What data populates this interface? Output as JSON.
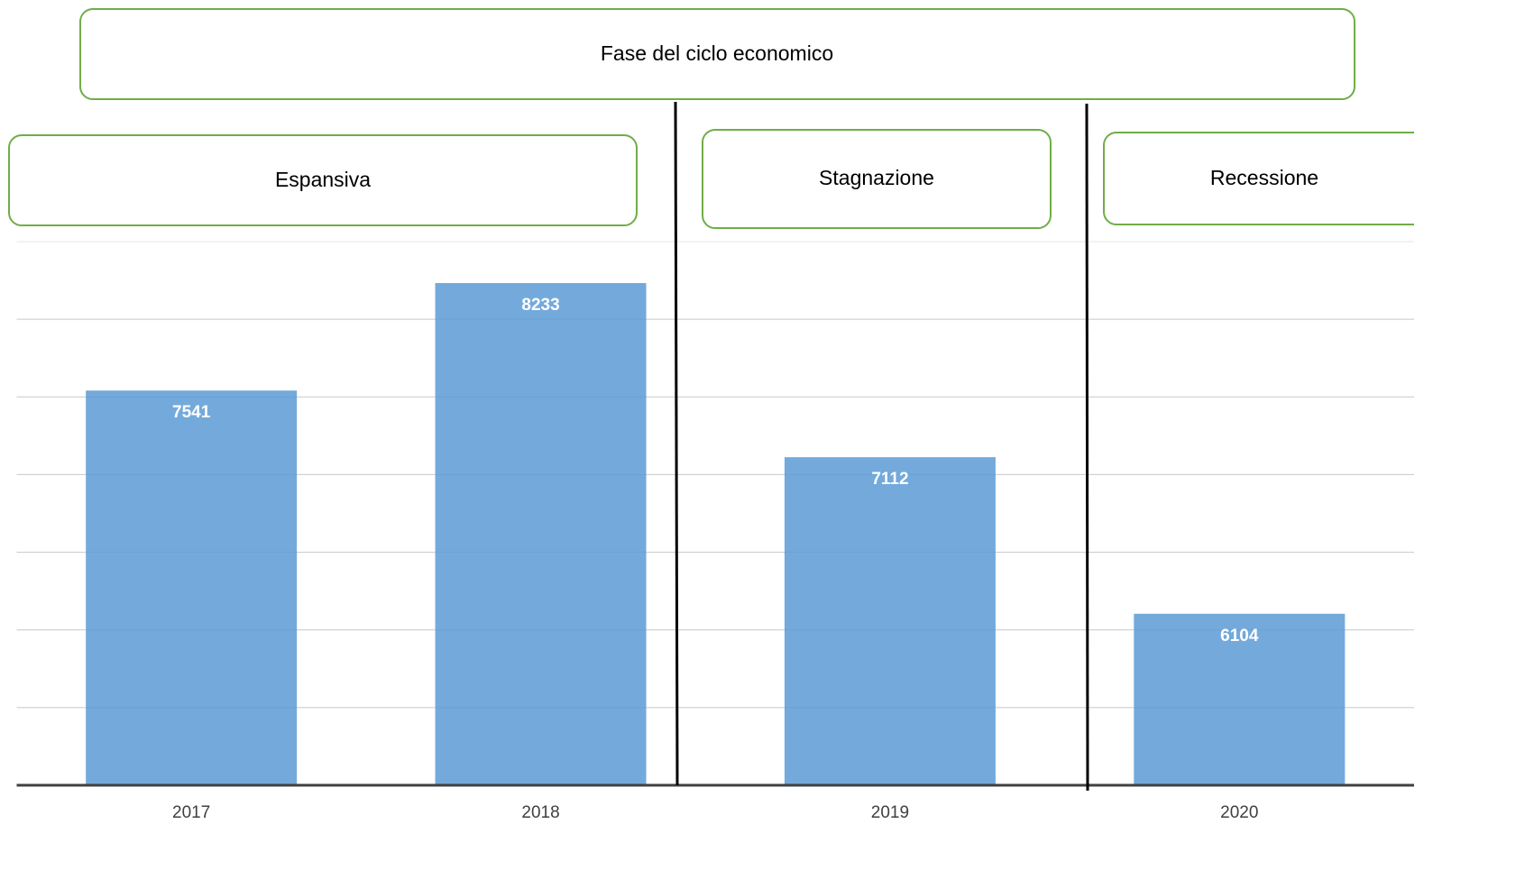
{
  "chart_data": {
    "type": "bar",
    "annotations": {
      "title": "Fase del ciclo economico",
      "phases": [
        "Espansiva",
        "Stagnazione",
        "Recessione"
      ]
    },
    "categories": [
      "2017",
      "2018",
      "2019",
      "2020"
    ],
    "values": [
      7541,
      8233,
      7112,
      6104
    ],
    "color": "#5b9bd5",
    "ylim": [
      5000,
      8500
    ],
    "yticks": [
      5000,
      5500,
      6000,
      6500,
      7000,
      7500,
      8000,
      8500
    ],
    "grid": true
  }
}
